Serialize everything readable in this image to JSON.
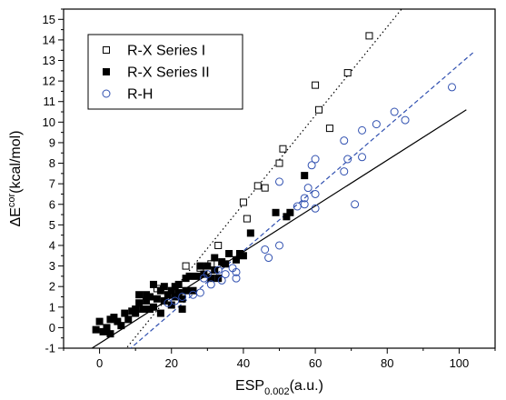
{
  "chart_data": {
    "type": "scatter",
    "xlabel": {
      "main": "ESP",
      "sub": "0.002",
      "suffix": "(a.u.)"
    },
    "ylabel": {
      "main": "ΔE",
      "sup": "cor",
      "suffix": "(kcal/mol)"
    },
    "xlim": [
      -10,
      110
    ],
    "ylim": [
      -1,
      15.5
    ],
    "xticks": [
      0,
      20,
      40,
      60,
      80,
      100
    ],
    "yticks": [
      -1,
      0,
      1,
      2,
      3,
      4,
      5,
      6,
      7,
      8,
      9,
      10,
      11,
      12,
      13,
      14,
      15
    ],
    "grid": false,
    "legend_position": "top-left",
    "series": [
      {
        "name": "R-X Series I",
        "marker": "open-square",
        "color": "#000000",
        "points": [
          [
            16,
            1.9
          ],
          [
            24,
            3.0
          ],
          [
            28,
            2.9
          ],
          [
            31,
            3.1
          ],
          [
            33,
            4.0
          ],
          [
            40,
            6.1
          ],
          [
            41,
            5.3
          ],
          [
            44,
            6.9
          ],
          [
            46,
            6.8
          ],
          [
            50,
            8.0
          ],
          [
            51,
            8.7
          ],
          [
            60,
            11.8
          ],
          [
            61,
            10.6
          ],
          [
            64,
            9.7
          ],
          [
            69,
            12.4
          ],
          [
            75,
            14.2
          ]
        ],
        "fit": {
          "style": "dotted",
          "from": [
            7,
            -1.1
          ],
          "to": [
            84,
            15.5
          ]
        }
      },
      {
        "name": "R-X Series II",
        "marker": "filled-square",
        "color": "#000000",
        "points": [
          [
            -1,
            -0.1
          ],
          [
            0,
            0.3
          ],
          [
            1,
            -0.2
          ],
          [
            2,
            0.0
          ],
          [
            3,
            0.4
          ],
          [
            3,
            -0.3
          ],
          [
            4,
            0.5
          ],
          [
            5,
            0.3
          ],
          [
            6,
            0.1
          ],
          [
            7,
            0.7
          ],
          [
            8,
            0.4
          ],
          [
            9,
            0.8
          ],
          [
            10,
            0.9
          ],
          [
            10,
            0.7
          ],
          [
            11,
            1.2
          ],
          [
            11,
            1.6
          ],
          [
            12,
            0.9
          ],
          [
            13,
            1.3
          ],
          [
            13,
            1.6
          ],
          [
            14,
            1.5
          ],
          [
            14,
            0.9
          ],
          [
            15,
            2.1
          ],
          [
            15,
            1.0
          ],
          [
            16,
            1.4
          ],
          [
            17,
            1.8
          ],
          [
            17,
            0.7
          ],
          [
            18,
            1.3
          ],
          [
            18,
            2.0
          ],
          [
            19,
            1.6
          ],
          [
            20,
            1.1
          ],
          [
            20,
            1.8
          ],
          [
            21,
            2.0
          ],
          [
            21,
            1.5
          ],
          [
            22,
            1.7
          ],
          [
            22,
            2.1
          ],
          [
            23,
            1.4
          ],
          [
            23,
            0.9
          ],
          [
            24,
            1.8
          ],
          [
            24,
            2.4
          ],
          [
            25,
            2.5
          ],
          [
            26,
            1.8
          ],
          [
            27,
            2.5
          ],
          [
            28,
            3.0
          ],
          [
            29,
            2.6
          ],
          [
            30,
            3.0
          ],
          [
            31,
            2.4
          ],
          [
            32,
            3.4
          ],
          [
            32,
            2.8
          ],
          [
            33,
            2.4
          ],
          [
            34,
            3.2
          ],
          [
            35,
            3.1
          ],
          [
            36,
            3.6
          ],
          [
            38,
            3.3
          ],
          [
            39,
            3.6
          ],
          [
            40,
            3.5
          ],
          [
            42,
            4.6
          ],
          [
            49,
            5.6
          ],
          [
            52,
            5.4
          ],
          [
            53,
            5.6
          ],
          [
            57,
            7.4
          ]
        ],
        "fit": {
          "style": "solid",
          "from": [
            -3,
            -1.1
          ],
          "to": [
            102,
            10.6
          ]
        }
      },
      {
        "name": "R-H",
        "marker": "open-circle",
        "color": "#3050b0",
        "points": [
          [
            19,
            1.2
          ],
          [
            21,
            1.3
          ],
          [
            23,
            1.5
          ],
          [
            26,
            1.6
          ],
          [
            28,
            1.7
          ],
          [
            29,
            2.4
          ],
          [
            30,
            2.6
          ],
          [
            31,
            2.1
          ],
          [
            33,
            2.8
          ],
          [
            34,
            2.3
          ],
          [
            35,
            2.6
          ],
          [
            37,
            2.9
          ],
          [
            38,
            2.4
          ],
          [
            38,
            2.7
          ],
          [
            46,
            3.8
          ],
          [
            47,
            3.4
          ],
          [
            50,
            4.0
          ],
          [
            50,
            7.1
          ],
          [
            55,
            5.9
          ],
          [
            57,
            6.0
          ],
          [
            57,
            6.3
          ],
          [
            58,
            6.8
          ],
          [
            59,
            7.9
          ],
          [
            60,
            8.2
          ],
          [
            60,
            6.5
          ],
          [
            60,
            5.8
          ],
          [
            68,
            7.6
          ],
          [
            68,
            9.1
          ],
          [
            69,
            8.2
          ],
          [
            71,
            6.0
          ],
          [
            73,
            8.3
          ],
          [
            73,
            9.6
          ],
          [
            77,
            9.9
          ],
          [
            82,
            10.5
          ],
          [
            85,
            10.1
          ],
          [
            98,
            11.7
          ]
        ],
        "fit": {
          "style": "dashed",
          "color": "#3050b0",
          "from": [
            8,
            -1.1
          ],
          "to": [
            104,
            13.4
          ]
        }
      }
    ]
  }
}
